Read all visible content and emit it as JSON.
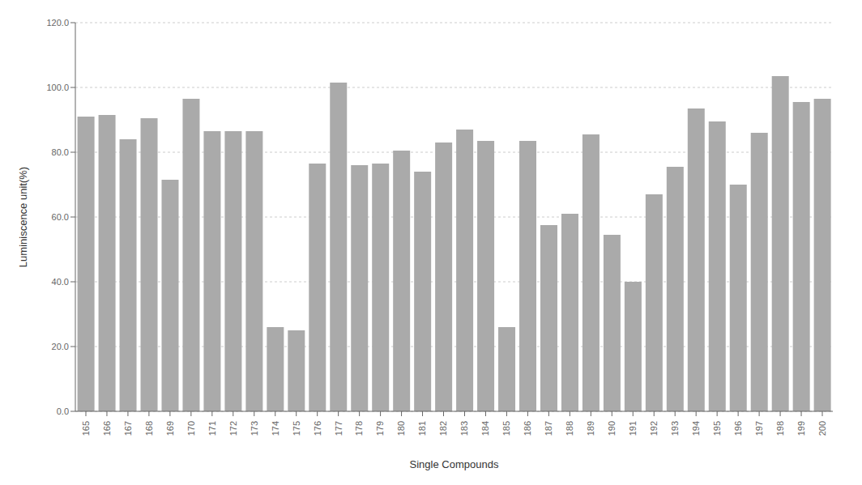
{
  "chart_data": {
    "type": "bar",
    "xlabel": "Single Compounds",
    "ylabel": "Luminiscence unit(%)",
    "categories": [
      "165",
      "166",
      "167",
      "168",
      "169",
      "170",
      "171",
      "172",
      "173",
      "174",
      "175",
      "176",
      "177",
      "178",
      "179",
      "180",
      "181",
      "182",
      "183",
      "184",
      "185",
      "186",
      "187",
      "188",
      "189",
      "190",
      "191",
      "192",
      "193",
      "194",
      "195",
      "196",
      "197",
      "198",
      "199",
      "200"
    ],
    "values": [
      91.0,
      91.5,
      84.0,
      90.5,
      71.5,
      96.5,
      86.5,
      86.5,
      86.5,
      26.0,
      25.0,
      76.5,
      101.5,
      76.0,
      76.5,
      80.5,
      74.0,
      83.0,
      87.0,
      83.5,
      26.0,
      83.5,
      57.5,
      61.0,
      85.5,
      54.5,
      40.0,
      67.0,
      75.5,
      93.5,
      89.5,
      70.0,
      86.0,
      103.5,
      95.5,
      96.5
    ],
    "color": "#aaaaaa",
    "ylim": [
      0,
      120
    ],
    "yticks": [
      {
        "value": 0,
        "label": "0.0"
      },
      {
        "value": 20,
        "label": "20.0"
      },
      {
        "value": 40,
        "label": "40.0"
      },
      {
        "value": 60,
        "label": "60.0"
      },
      {
        "value": 80,
        "label": "80.0"
      },
      {
        "value": 100,
        "label": "100.0"
      },
      {
        "value": 120,
        "label": "120.0"
      }
    ],
    "grid": true
  }
}
